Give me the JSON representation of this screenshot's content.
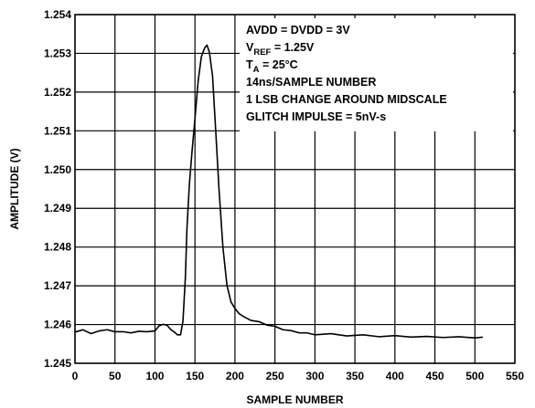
{
  "chart_data": {
    "type": "line",
    "xlabel": "SAMPLE NUMBER",
    "ylabel": "AMPLITUDE (V)",
    "xlim": [
      0,
      550
    ],
    "ylim": [
      1.245,
      1.254
    ],
    "x_ticks": [
      "0",
      "50",
      "100",
      "150",
      "200",
      "250",
      "300",
      "350",
      "400",
      "450",
      "500",
      "550"
    ],
    "y_ticks": [
      "1.245",
      "1.246",
      "1.247",
      "1.248",
      "1.249",
      "1.250",
      "1.251",
      "1.252",
      "1.253",
      "1.254"
    ],
    "grid": true,
    "annotations": [
      {
        "main": "AVDD = DVDD = 3V",
        "sub": "",
        "tail": ""
      },
      {
        "main": "V",
        "sub": "REF",
        "tail": " = 1.25V"
      },
      {
        "main": "T",
        "sub": "A",
        "tail": " = 25°C"
      },
      {
        "main": "14ns/SAMPLE NUMBER",
        "sub": "",
        "tail": ""
      },
      {
        "main": "1 LSB CHANGE AROUND MIDSCALE",
        "sub": "",
        "tail": ""
      },
      {
        "main": "GLITCH IMPULSE = 5nV-s",
        "sub": "",
        "tail": ""
      }
    ],
    "series": [
      {
        "x": [
          0,
          10,
          20,
          30,
          40,
          50,
          60,
          70,
          80,
          90,
          100,
          105,
          110,
          115,
          120,
          125,
          128,
          132,
          135,
          138,
          140,
          143,
          146,
          150,
          154,
          158,
          162,
          165,
          168,
          172,
          176,
          180,
          185,
          190,
          195,
          200,
          205,
          210,
          220,
          230,
          240,
          250,
          260,
          270,
          280,
          290,
          300,
          320,
          340,
          360,
          380,
          400,
          420,
          440,
          460,
          480,
          500,
          510
        ],
        "y": [
          1.24582,
          1.24585,
          1.24578,
          1.24582,
          1.24588,
          1.2458,
          1.24583,
          1.24577,
          1.24584,
          1.2458,
          1.24585,
          1.24595,
          1.24602,
          1.24597,
          1.24588,
          1.24578,
          1.24575,
          1.24572,
          1.2461,
          1.2472,
          1.2485,
          1.2496,
          1.2504,
          1.2513,
          1.2523,
          1.2529,
          1.25315,
          1.2532,
          1.25305,
          1.2524,
          1.251,
          1.2495,
          1.248,
          1.247,
          1.2466,
          1.2464,
          1.2463,
          1.2462,
          1.24612,
          1.24606,
          1.246,
          1.24594,
          1.24588,
          1.24583,
          1.2458,
          1.24577,
          1.24575,
          1.24575,
          1.24572,
          1.24572,
          1.2457,
          1.2457,
          1.24569,
          1.24568,
          1.24568,
          1.24567,
          1.24567,
          1.24566
        ]
      }
    ]
  }
}
